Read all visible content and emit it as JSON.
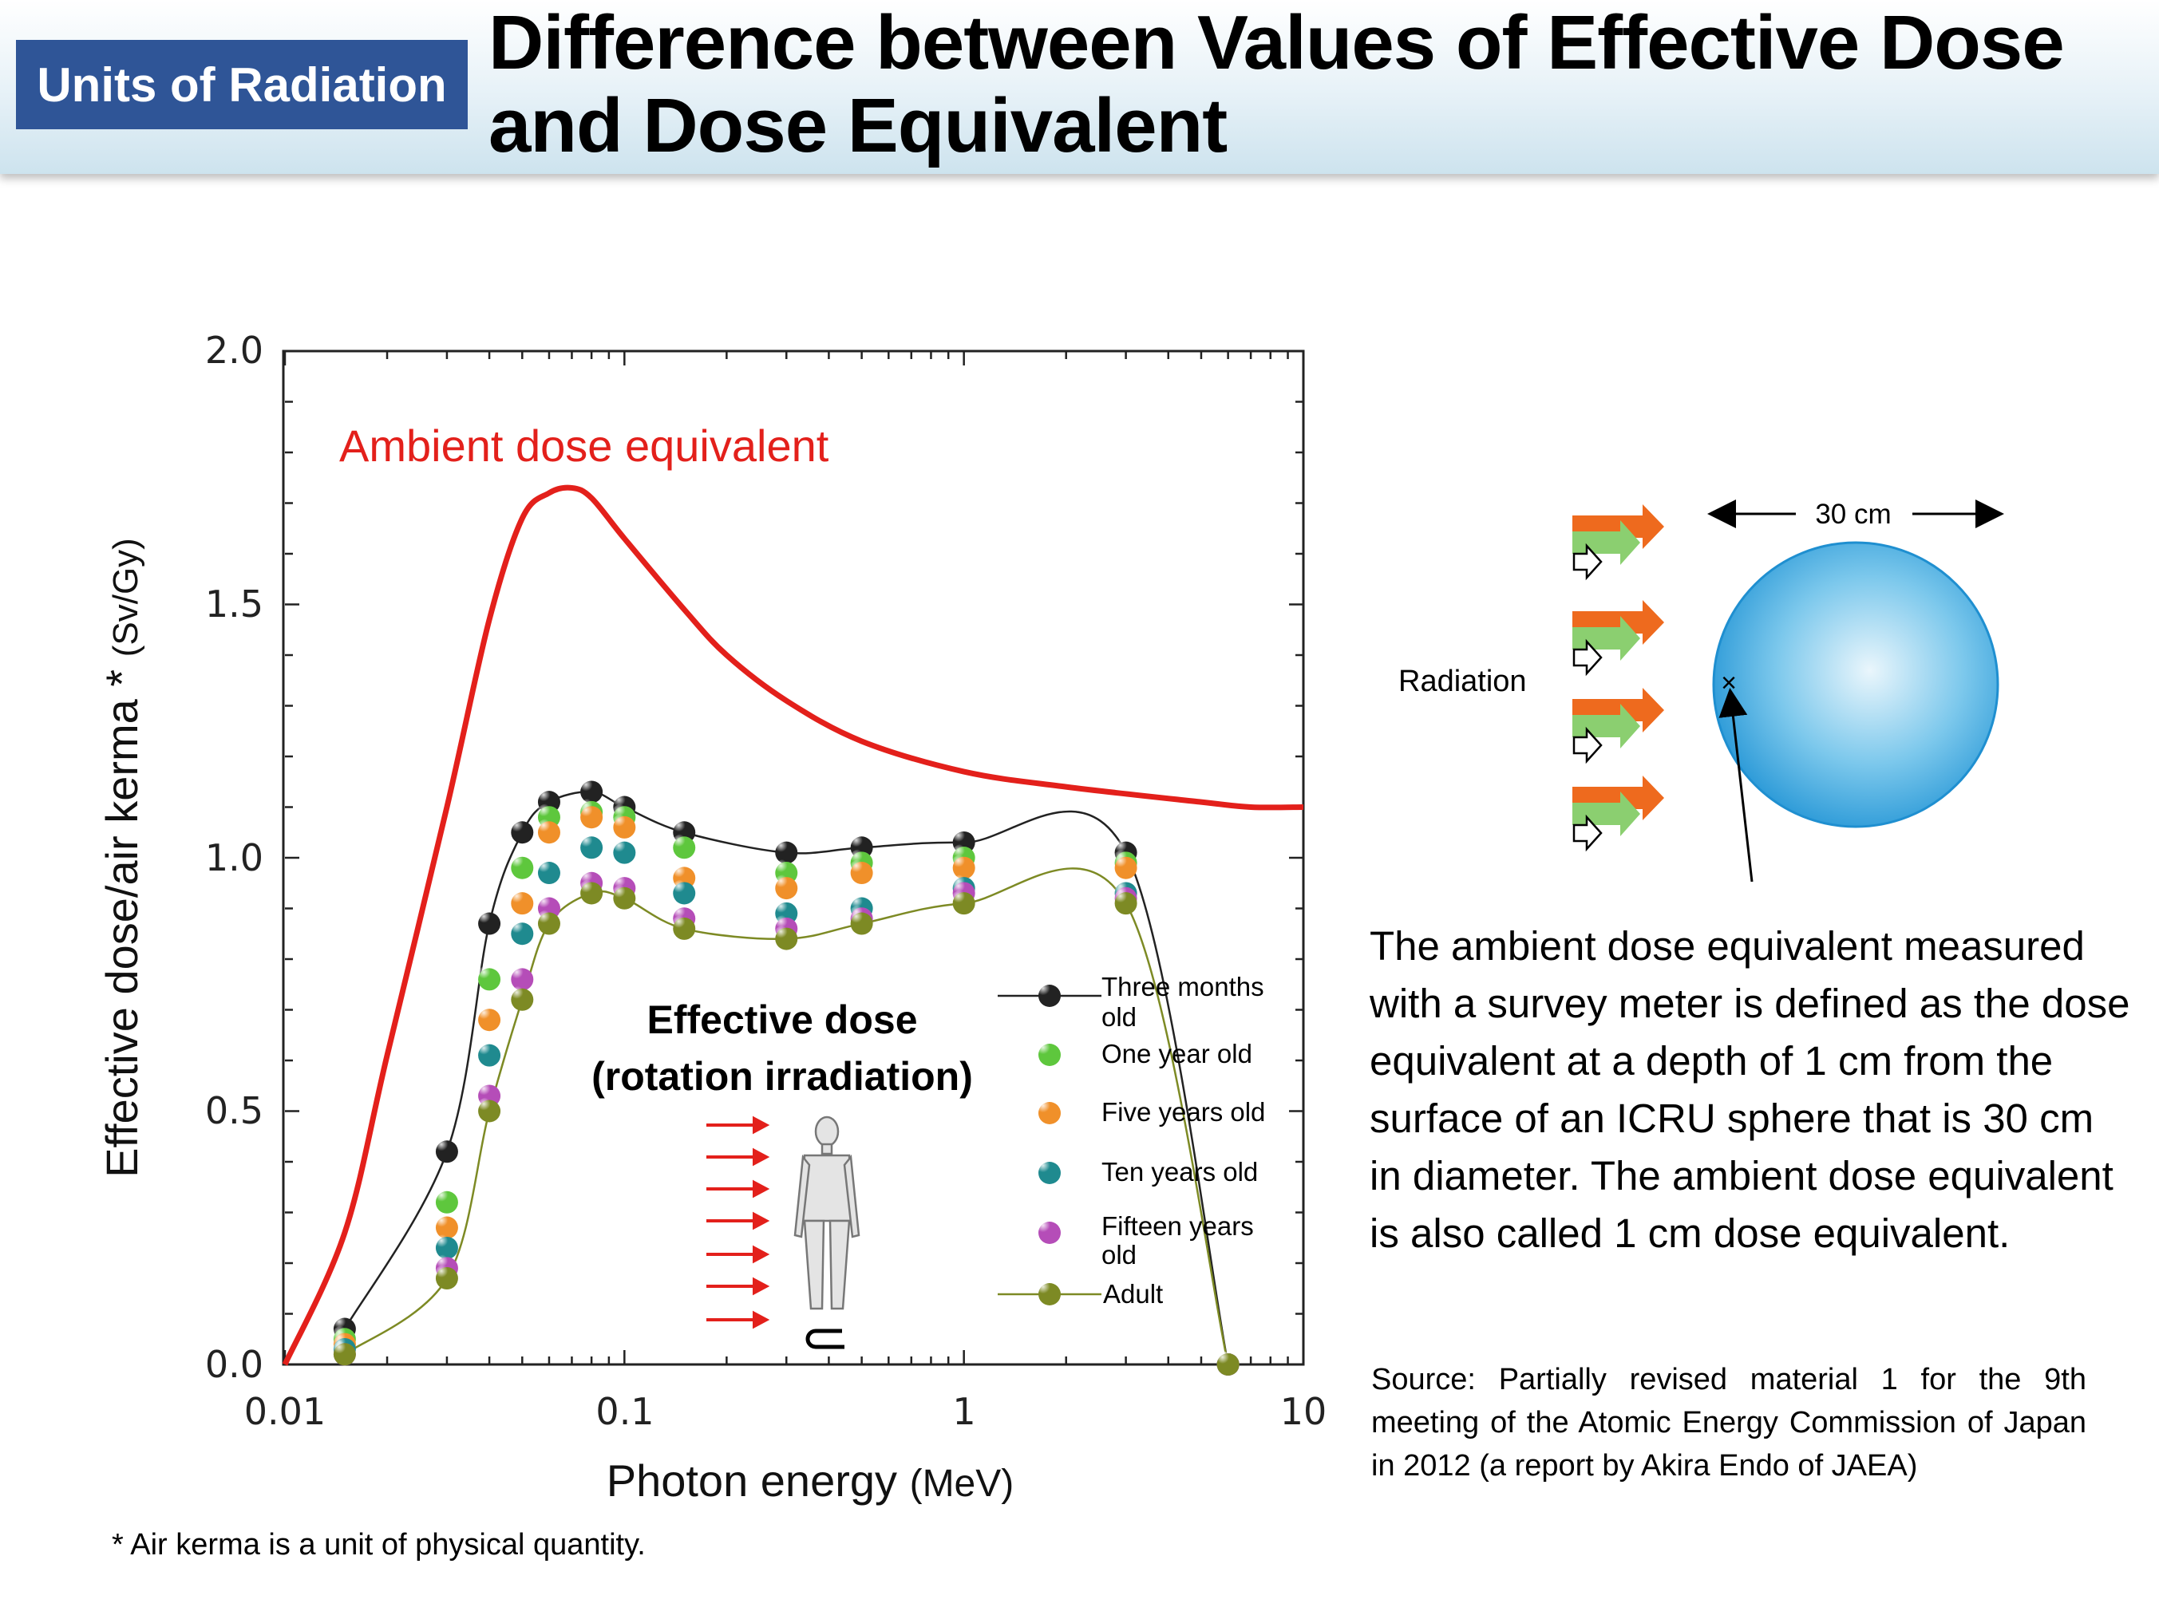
{
  "header": {
    "category": "Units of Radiation",
    "title": "Difference between Values of Effective Dose and Dose Equivalent"
  },
  "chart_data": {
    "type": "line",
    "x_scale": "log",
    "xlim": [
      0.01,
      10
    ],
    "ylim": [
      0,
      2.0
    ],
    "xlabel": "Photon energy",
    "xlabel_unit": "(MeV)",
    "ylabel": "Effective dose/air kerma *",
    "ylabel_unit": "(Sv/Gy)",
    "x_ticks": [
      "0.01",
      "0.1",
      "1",
      "10"
    ],
    "y_ticks": [
      "0.0",
      "0.5",
      "1.0",
      "1.5",
      "2.0"
    ],
    "annotations": {
      "ambient_label": "Ambient dose equivalent",
      "effective_label_line1": "Effective dose",
      "effective_label_line2": "(rotation irradiation)"
    },
    "ambient_curve": {
      "name": "Ambient dose equivalent",
      "color": "#e3201b",
      "x": [
        0.01,
        0.015,
        0.02,
        0.03,
        0.04,
        0.05,
        0.06,
        0.07,
        0.08,
        0.1,
        0.15,
        0.2,
        0.3,
        0.5,
        1,
        2,
        5,
        7,
        10
      ],
      "y": [
        0.0,
        0.26,
        0.61,
        1.1,
        1.47,
        1.67,
        1.72,
        1.73,
        1.71,
        1.63,
        1.49,
        1.4,
        1.31,
        1.23,
        1.17,
        1.14,
        1.11,
        1.1,
        1.1
      ]
    },
    "x_points": [
      0.015,
      0.03,
      0.04,
      0.05,
      0.06,
      0.08,
      0.1,
      0.15,
      0.3,
      0.5,
      1,
      3,
      6
    ],
    "series": [
      {
        "name": "Three months old",
        "color": "#222222",
        "line": true,
        "values": [
          0.07,
          0.42,
          0.87,
          1.05,
          1.11,
          1.13,
          1.1,
          1.05,
          1.01,
          1.02,
          1.03,
          1.01,
          0.0
        ]
      },
      {
        "name": "One year old",
        "color": "#5ec73d",
        "line": false,
        "values": [
          0.05,
          0.32,
          0.76,
          0.98,
          1.08,
          1.09,
          1.08,
          1.02,
          0.97,
          0.99,
          1.0,
          0.99,
          0.0
        ]
      },
      {
        "name": "Five years old",
        "color": "#f0902a",
        "line": false,
        "values": [
          0.04,
          0.27,
          0.68,
          0.91,
          1.05,
          1.08,
          1.06,
          0.96,
          0.94,
          0.97,
          0.98,
          0.98,
          0.0
        ]
      },
      {
        "name": "Ten years old",
        "color": "#1f8a8f",
        "line": false,
        "values": [
          0.03,
          0.23,
          0.61,
          0.85,
          0.97,
          1.02,
          1.01,
          0.93,
          0.89,
          0.9,
          0.94,
          0.93,
          0.0
        ]
      },
      {
        "name": "Fifteen years old",
        "color": "#b54db8",
        "line": false,
        "values": [
          0.02,
          0.19,
          0.53,
          0.76,
          0.9,
          0.95,
          0.94,
          0.88,
          0.86,
          0.88,
          0.93,
          0.92,
          0.0
        ]
      },
      {
        "name": "Adult",
        "color": "#7d8a24",
        "line": true,
        "values": [
          0.02,
          0.17,
          0.5,
          0.72,
          0.87,
          0.93,
          0.92,
          0.86,
          0.84,
          0.87,
          0.91,
          0.91,
          0.0
        ]
      }
    ]
  },
  "diagram": {
    "radiation_label": "Radiation",
    "diameter_label": "30 cm"
  },
  "description": "The ambient dose equivalent measured with a survey meter is defined as the dose equivalent at a depth of 1 cm from the surface of an ICRU sphere that is 30 cm in diameter. The ambient dose equivalent is also called 1 cm dose equivalent.",
  "source": "Source: Partially revised material 1 for the 9th meeting of the Atomic Energy Commission of Japan in 2012 (a report by Akira Endo of JAEA)",
  "footnote": "* Air kerma is a unit of physical quantity."
}
